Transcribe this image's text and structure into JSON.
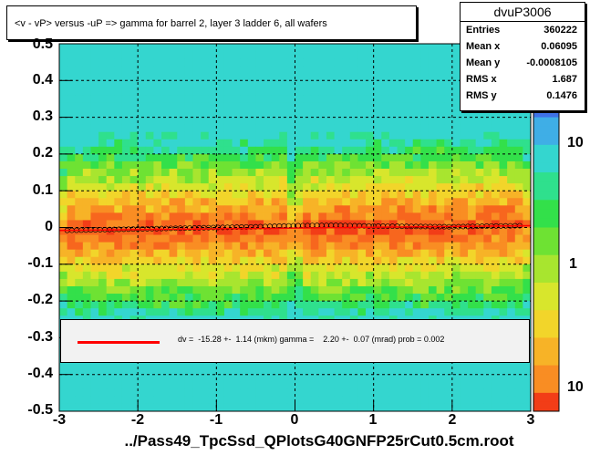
{
  "chart_data": {
    "type": "heatmap",
    "title": "<v - vP>       versus  -uP =>  gamma for barrel 2, layer 3 ladder 6, all wafers",
    "xlabel": "../Pass49_TpcSsd_QPlotsG40GNFP25rCut0.5cm.root",
    "ylabel": "",
    "xlim": [
      -3,
      3
    ],
    "ylim": [
      -0.5,
      0.5
    ],
    "x_ticks": [
      "-3",
      "-2",
      "-1",
      "0",
      "1",
      "2",
      "3"
    ],
    "y_ticks": [
      "-0.5",
      "-0.4",
      "-0.3",
      "-0.2",
      "-0.1",
      "0",
      "0.1",
      "0.2",
      "0.3",
      "0.4",
      "0.5"
    ],
    "y_tick_values": [
      -0.5,
      -0.4,
      -0.3,
      -0.2,
      -0.1,
      0,
      0.1,
      0.2,
      0.3,
      0.4,
      0.5
    ],
    "z_scale": "log",
    "z_ticks": [
      "10",
      "1",
      "10"
    ],
    "grid": true,
    "profile": {
      "x": [
        -2.9,
        -2.5,
        -2.0,
        -1.5,
        -1.0,
        -0.5,
        0.0,
        0.5,
        1.0,
        1.5,
        2.0,
        2.5,
        2.9
      ],
      "y": [
        -0.008,
        -0.006,
        -0.004,
        -0.002,
        0.0,
        0.002,
        0.005,
        0.006,
        0.004,
        0.003,
        0.002,
        0.004,
        0.005
      ]
    },
    "fit": {
      "text": "dv =  -15.28 +-  1.14 (mkm) gamma =    2.20 +-  0.07 (mrad) prob = 0.002",
      "intercept": -0.0015,
      "slope": 0.0022
    },
    "stats": {
      "name": "dvuP3006",
      "entries": "360222",
      "mean_x": "0.06095",
      "mean_y": "-0.0008105",
      "rms_x": "1.687",
      "rms_y": "0.1476"
    }
  },
  "labels": {
    "entries": "Entries",
    "mean_x": "Mean x",
    "mean_y": "Mean y",
    "rms_x": "RMS x",
    "rms_y": "RMS y"
  }
}
